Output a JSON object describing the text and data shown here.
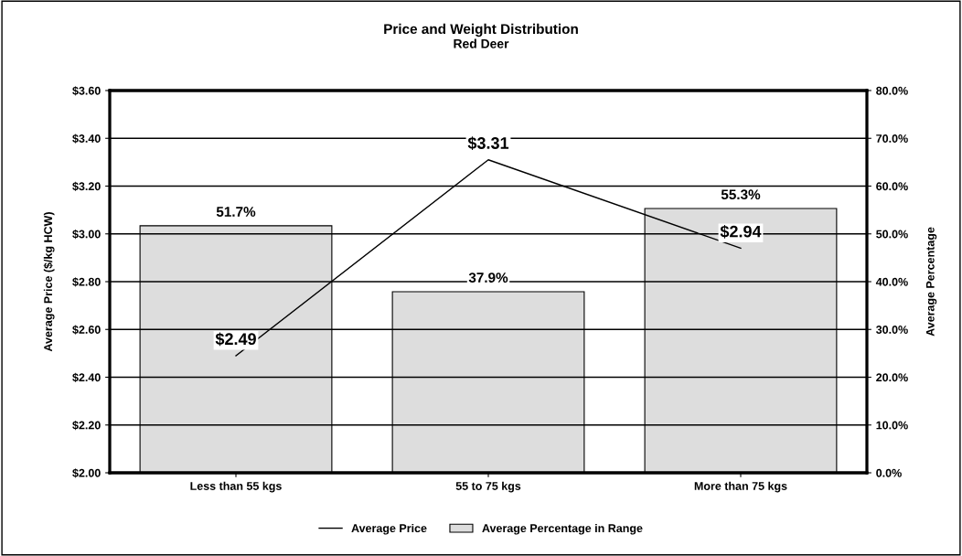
{
  "chart_data": {
    "type": "bar",
    "title": "Price and Weight Distribution",
    "subtitle": "Red Deer",
    "ylabel": "Average Price ($/kg HCW)",
    "y2label": "Average Percentage",
    "categories": [
      "Less than 55 kgs",
      "55 to 75 kgs",
      "More than 75 kgs"
    ],
    "series": [
      {
        "name": "Average Price",
        "type": "line",
        "color": "#000000",
        "values": [
          2.49,
          3.31,
          2.94
        ],
        "value_labels": [
          "$2.49",
          "$3.31",
          "$2.94"
        ]
      },
      {
        "name": "Average Percentage in Range",
        "type": "bar",
        "axis": "y2",
        "color": "#dddddd",
        "values": [
          51.7,
          37.9,
          55.3
        ],
        "value_labels": [
          "51.7%",
          "37.9%",
          "55.3%"
        ]
      }
    ],
    "ylim": [
      2.0,
      3.6
    ],
    "yticks": [
      {
        "value": 2.0,
        "label": "$2.00"
      },
      {
        "value": 2.2,
        "label": "$2.20"
      },
      {
        "value": 2.4,
        "label": "$2.40"
      },
      {
        "value": 2.6,
        "label": "$2.60"
      },
      {
        "value": 2.8,
        "label": "$2.80"
      },
      {
        "value": 3.0,
        "label": "$3.00"
      },
      {
        "value": 3.2,
        "label": "$3.20"
      },
      {
        "value": 3.4,
        "label": "$3.40"
      },
      {
        "value": 3.6,
        "label": "$3.60"
      }
    ],
    "y2lim": [
      0,
      80
    ],
    "y2ticks": [
      {
        "value": 0,
        "label": "0.0%"
      },
      {
        "value": 10,
        "label": "10.0%"
      },
      {
        "value": 20,
        "label": "20.0%"
      },
      {
        "value": 30,
        "label": "30.0%"
      },
      {
        "value": 40,
        "label": "40.0%"
      },
      {
        "value": 50,
        "label": "50.0%"
      },
      {
        "value": 60,
        "label": "60.0%"
      },
      {
        "value": 70,
        "label": "70.0%"
      },
      {
        "value": 80,
        "label": "80.0%"
      }
    ],
    "grid": "y",
    "legend": "bottom",
    "marker": "none",
    "line_style": "solid"
  }
}
